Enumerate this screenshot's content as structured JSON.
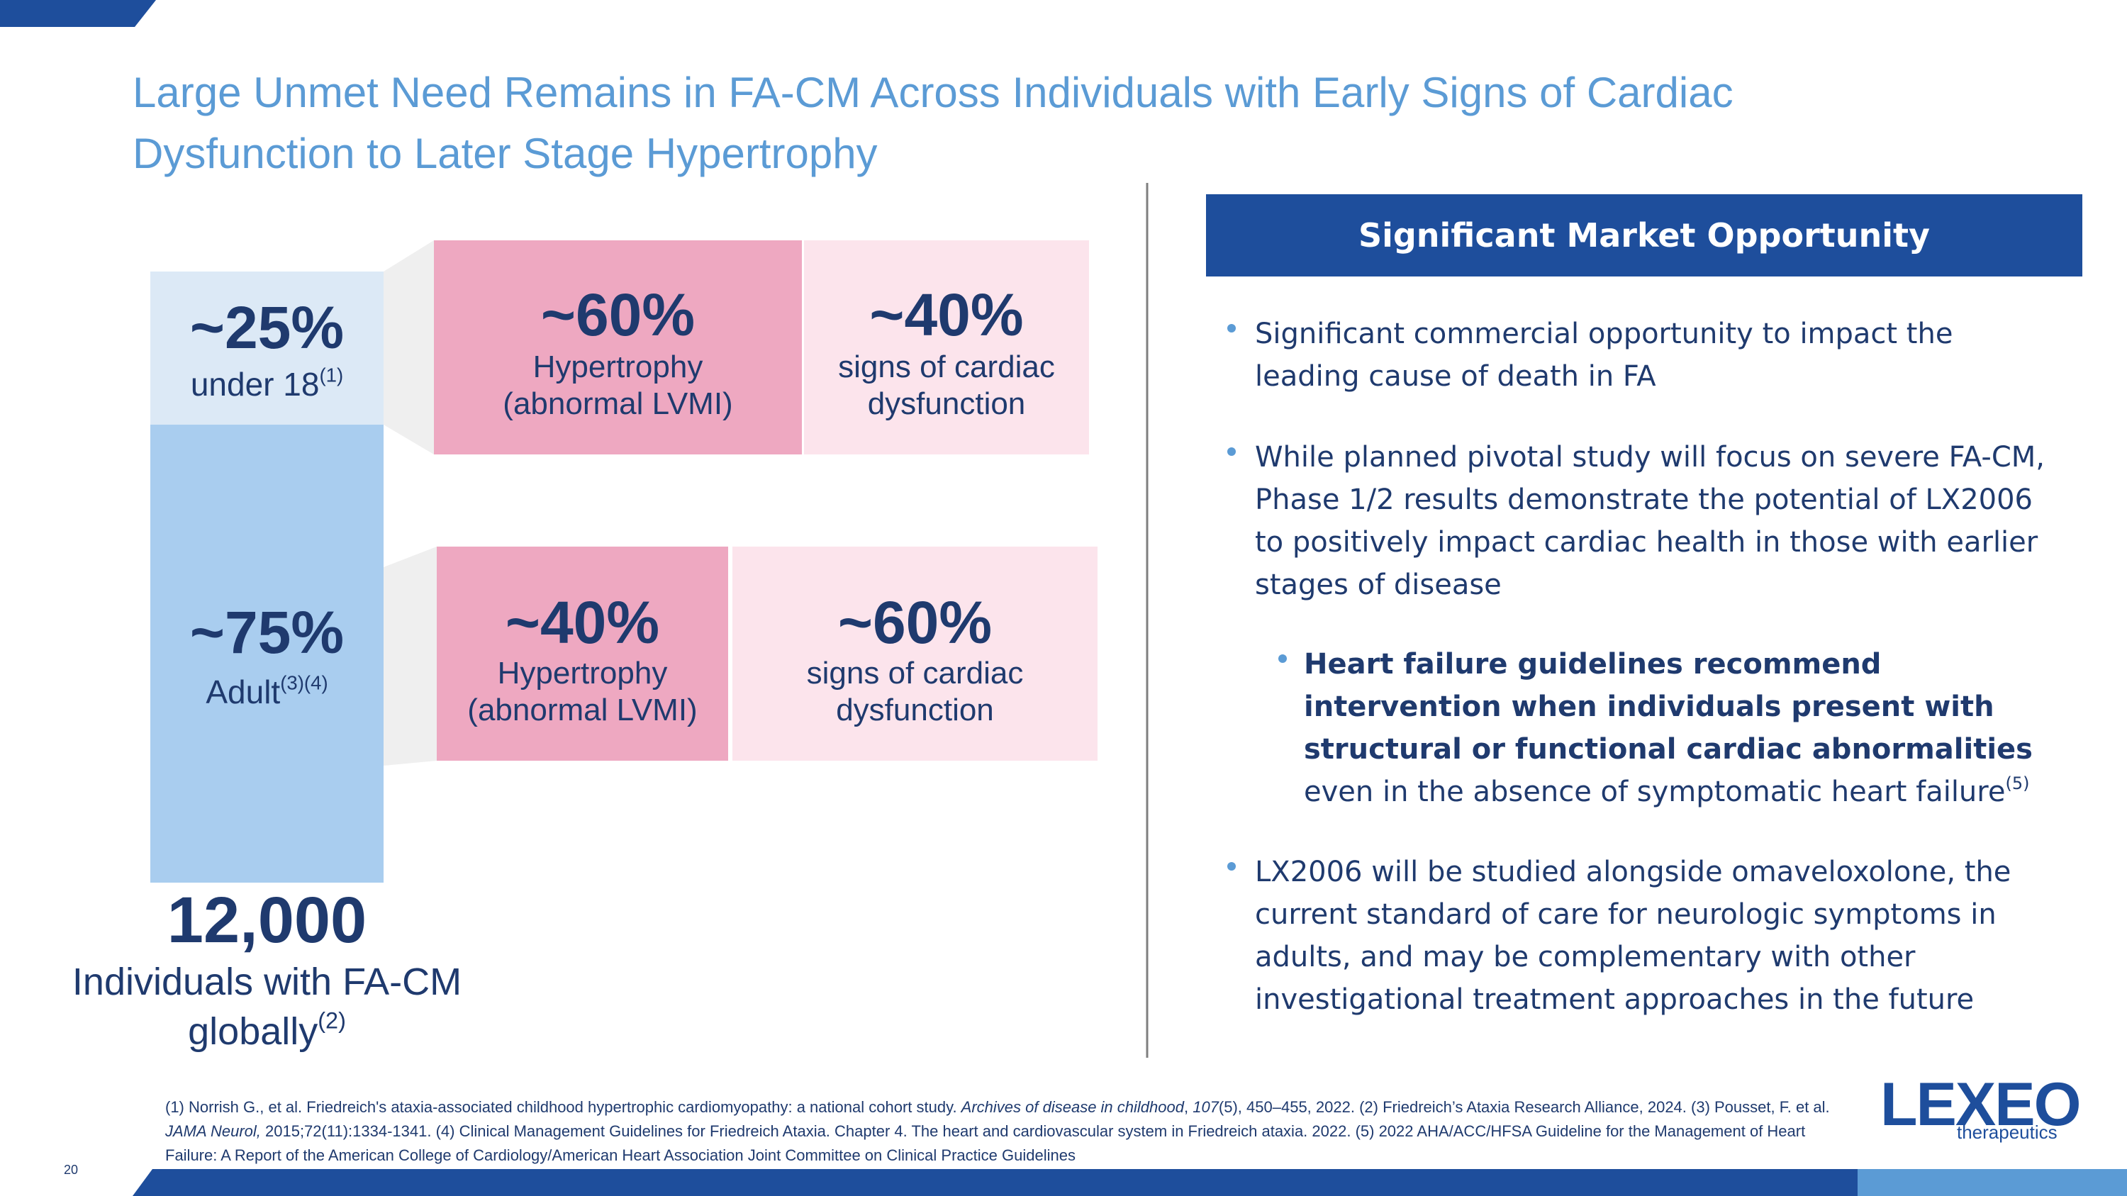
{
  "header": {
    "title": "Large Unmet Need Remains in FA-CM Across Individuals with Early Signs of Cardiac Dysfunction to Later Stage Hypertrophy"
  },
  "population": {
    "under18": {
      "pct": "~25%",
      "label": "under 18",
      "ref": "(1)"
    },
    "adult": {
      "pct": "~75%",
      "label": "Adult",
      "ref": "(3)(4)"
    },
    "total": {
      "number": "12,000",
      "label": "Individuals with FA-CM globally",
      "ref": "(2)"
    }
  },
  "breakdown": {
    "under18": [
      {
        "pct": "~60%",
        "label": "Hypertrophy (abnormal LVMI)"
      },
      {
        "pct": "~40%",
        "label": "signs of cardiac dysfunction"
      }
    ],
    "adult": [
      {
        "pct": "~40%",
        "label": "Hypertrophy (abnormal LVMI)"
      },
      {
        "pct": "~60%",
        "label": "signs of cardiac dysfunction"
      }
    ]
  },
  "opportunity": {
    "heading": "Significant Market Opportunity",
    "bullets": [
      "Significant commercial opportunity to impact the leading cause of death in FA",
      "While planned pivotal study will focus on severe FA-CM, Phase 1/2 results demonstrate the potential of LX2006 to positively impact cardiac health in those with earlier stages of disease"
    ],
    "sub_bullet": {
      "bold": "Heart failure guidelines recommend intervention when individuals present with structural or functional cardiac abnormalities",
      "text": " even in the absence of symptomatic heart failure",
      "ref": "(5)"
    },
    "last_bullet": "LX2006 will be studied alongside omaveloxolone, the current standard of care for neurologic symptoms in adults, and may be complementary with other investigational treatment approaches in the future"
  },
  "footnote": [
    {
      "text": "(1) Norrish G., et al. Friedreich's ataxia-associated childhood hypertrophic cardiomyopathy: a national cohort study. "
    },
    {
      "text": "Archives of disease in childhood",
      "italic": true
    },
    {
      "text": ", "
    },
    {
      "text": "107",
      "italic": true
    },
    {
      "text": "(5), 450–455, 2022. (2) Friedreich’s Ataxia Research Alliance, 2024. (3) Pousset, F. et al. "
    },
    {
      "text": "JAMA Neurol,",
      "italic": true
    },
    {
      "text": " 2015;72(11):1334-1341. (4) Clinical Management Guidelines for Friedreich Ataxia. Chapter 4. The heart and cardiovascular system in Friedreich ataxia. 2022. (5) 2022 AHA/ACC/HFSA Guideline for the Management of Heart Failure: A Report of the American College of Cardiology/American Heart Association Joint Committee on Clinical Practice Guidelines"
    }
  ],
  "page_number": "20",
  "logo": {
    "name": "LEXEO",
    "tagline": "therapeutics"
  }
}
